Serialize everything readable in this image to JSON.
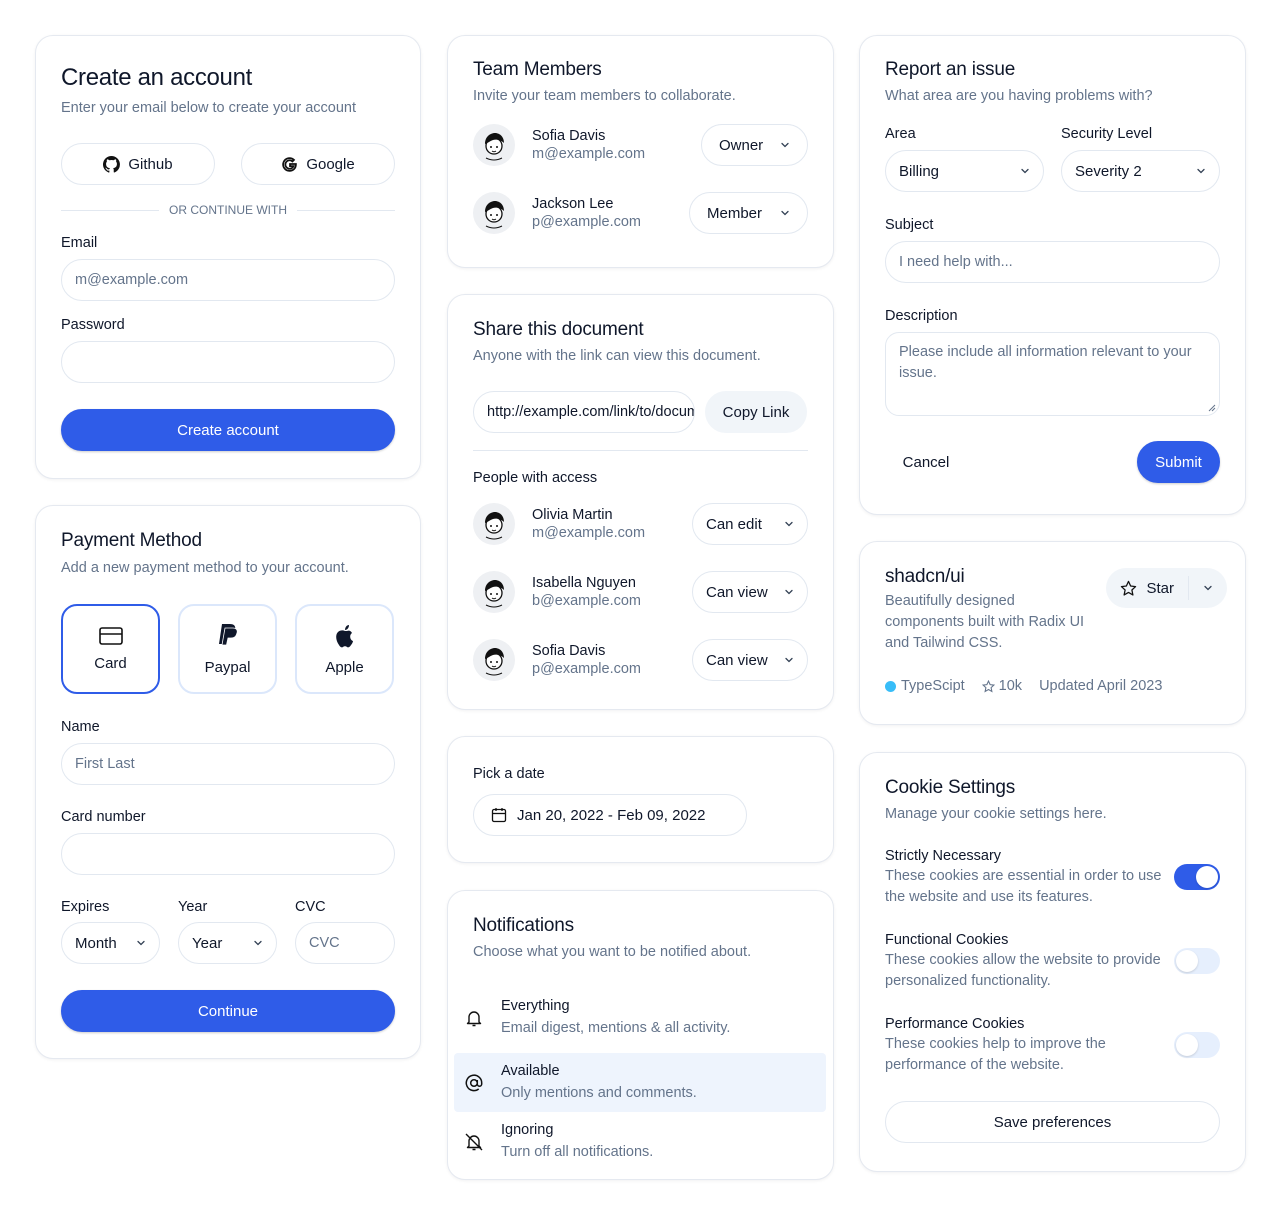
{
  "create_account": {
    "title": "Create an account",
    "subtitle": "Enter your email below to create your account",
    "github": "Github",
    "google": "Google",
    "divider": "OR CONTINUE WITH",
    "email_label": "Email",
    "email_placeholder": "m@example.com",
    "password_label": "Password",
    "submit": "Create account"
  },
  "payment": {
    "title": "Payment Method",
    "subtitle": "Add a new payment method to your account.",
    "methods": [
      {
        "label": "Card",
        "icon": "credit-card-icon",
        "selected": true
      },
      {
        "label": "Paypal",
        "icon": "paypal-icon"
      },
      {
        "label": "Apple",
        "icon": "apple-icon"
      }
    ],
    "name_label": "Name",
    "name_placeholder": "First Last",
    "card_label": "Card number",
    "expires_label": "Expires",
    "month": "Month",
    "year_label": "Year",
    "year": "Year",
    "cvc_label": "CVC",
    "cvc_placeholder": "CVC",
    "submit": "Continue"
  },
  "team": {
    "title": "Team Members",
    "subtitle": "Invite your team members to collaborate.",
    "members": [
      {
        "name": "Sofia Davis",
        "email": "m@example.com",
        "role": "Owner"
      },
      {
        "name": "Jackson Lee",
        "email": "p@example.com",
        "role": "Member"
      }
    ]
  },
  "share": {
    "title": "Share this document",
    "subtitle": "Anyone with the link can view this document.",
    "link": "http://example.com/link/to/document",
    "copy": "Copy Link",
    "people_label": "People with access",
    "people": [
      {
        "name": "Olivia Martin",
        "email": "m@example.com",
        "access": "Can edit"
      },
      {
        "name": "Isabella Nguyen",
        "email": "b@example.com",
        "access": "Can view"
      },
      {
        "name": "Sofia Davis",
        "email": "p@example.com",
        "access": "Can view"
      }
    ]
  },
  "date": {
    "label": "Pick a date",
    "range": "Jan 20, 2022 - Feb 09, 2022"
  },
  "notifications": {
    "title": "Notifications",
    "subtitle": "Choose what you want to be notified about.",
    "items": [
      {
        "title": "Everything",
        "desc": "Email digest, mentions & all activity.",
        "icon": "bell-icon"
      },
      {
        "title": "Available",
        "desc": "Only mentions and comments.",
        "icon": "at-sign-icon",
        "active": true
      },
      {
        "title": "Ignoring",
        "desc": "Turn off all notifications.",
        "icon": "bell-off-icon"
      }
    ]
  },
  "report": {
    "title": "Report an issue",
    "subtitle": "What area are you having problems with?",
    "area_label": "Area",
    "area": "Billing",
    "level_label": "Security Level",
    "level": "Severity 2",
    "subject_label": "Subject",
    "subject_placeholder": "I need help with...",
    "description_label": "Description",
    "description_placeholder": "Please include all information relevant to your issue.",
    "cancel": "Cancel",
    "submit": "Submit"
  },
  "repo": {
    "name": "shadcn/ui",
    "description": "Beautifully designed components built with Radix UI and Tailwind CSS.",
    "star": "Star",
    "language": "TypeScipt",
    "language_color": "#38bdf8",
    "stars": "10k",
    "updated": "Updated April 2023"
  },
  "cookies": {
    "title": "Cookie Settings",
    "subtitle": "Manage your cookie settings here.",
    "items": [
      {
        "title": "Strictly Necessary",
        "desc": "These cookies are essential in order to use the website and use its features.",
        "enabled": true
      },
      {
        "title": "Functional Cookies",
        "desc": "These cookies allow the website to provide personalized functionality.",
        "enabled": false
      },
      {
        "title": "Performance Cookies",
        "desc": "These cookies help to improve the performance of the website.",
        "enabled": false
      }
    ],
    "save": "Save preferences"
  },
  "colors": {
    "primary": "#2f5ce8",
    "muted": "#64748b",
    "border": "#e2e8f0"
  }
}
